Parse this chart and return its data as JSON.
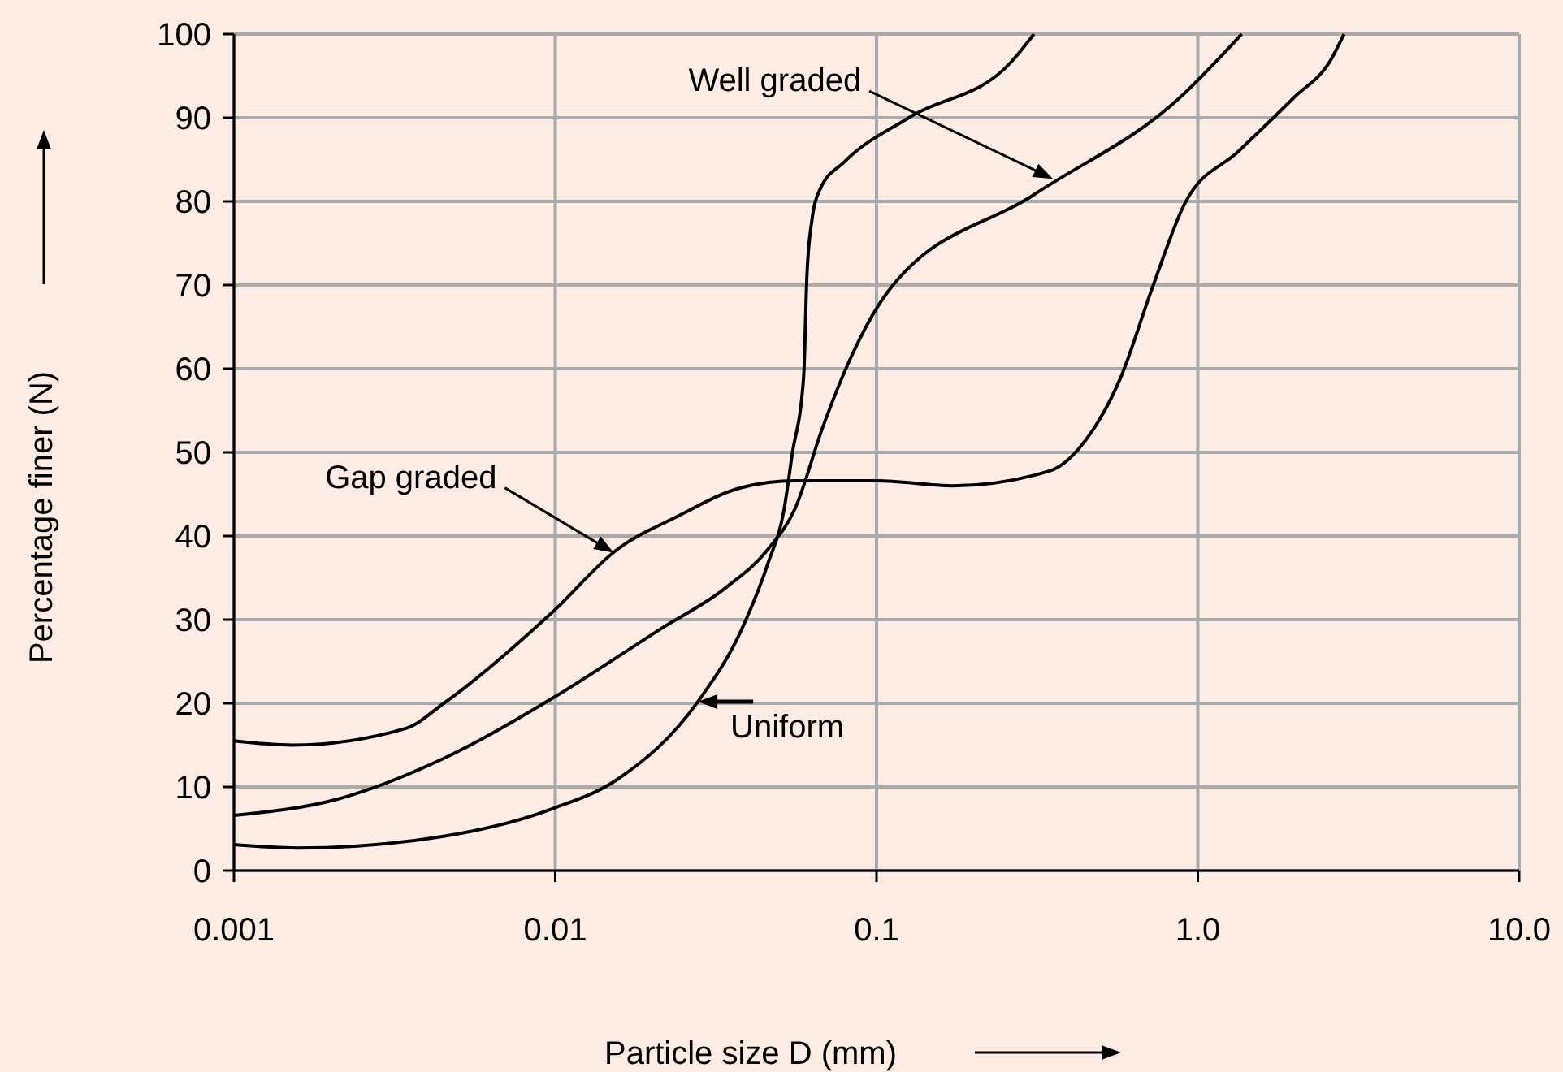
{
  "chart_data": {
    "type": "line",
    "xlabel": "Particle size D (mm)",
    "ylabel": "Percentage finer  (N)",
    "log": "x",
    "xlim": [
      0.001,
      10
    ],
    "xticks": [
      0.001,
      0.01,
      0.1,
      {
        "value": 1,
        "label": "1.0"
      },
      {
        "value": 10,
        "label": "10.0"
      }
    ],
    "ylim": [
      0,
      100
    ],
    "yticks": [
      0,
      10,
      20,
      30,
      40,
      50,
      60,
      70,
      80,
      90,
      100
    ],
    "grid": true,
    "marker": "none",
    "line_style": "solid",
    "series": [
      {
        "color": "#000000",
        "x": [
          0.001,
          0.00157,
          0.00449,
          0.0098,
          0.0156,
          0.0278,
          0.0381,
          0.0459,
          0.0516,
          0.0546,
          0.0593,
          0.0607,
          0.0628,
          0.0666,
          0.0793,
          0.126,
          0.263,
          0.309
        ],
        "values": [
          3.1,
          2.7,
          4.1,
          7.4,
          10.9,
          20.2,
          28.9,
          36.7,
          43.3,
          49.7,
          59,
          71,
          77.5,
          81.4,
          84.7,
          90,
          96.7,
          100
        ]
      },
      {
        "color": "#000000",
        "x": [
          0.001,
          0.00208,
          0.00449,
          0.0098,
          0.0213,
          0.0339,
          0.0459,
          0.0558,
          0.068,
          0.082,
          0.108,
          0.309,
          0.879,
          1.37
        ],
        "values": [
          6.6,
          8.5,
          13.4,
          20.6,
          28.9,
          33.8,
          38.4,
          43.3,
          53,
          60.8,
          69.1,
          80.8,
          92.4,
          100
        ]
      },
      {
        "color": "#000000",
        "x": [
          0.001,
          0.00152,
          0.00343,
          0.0045,
          0.0098,
          0.0156,
          0.0239,
          0.0381,
          0.0558,
          0.1,
          0.173,
          0.347,
          0.438,
          0.573,
          0.722,
          0.912,
          1.34,
          1.99,
          2.6,
          2.85
        ],
        "values": [
          15.5,
          15,
          17,
          20,
          30.9,
          38.4,
          42.3,
          45.8,
          46.6,
          46.6,
          46,
          47.8,
          51,
          58.8,
          69.7,
          79.8,
          86,
          92.4,
          97,
          100
        ]
      }
    ],
    "annotations": [
      {
        "text": "Well graded",
        "x": 0.354,
        "y": 82.7
      },
      {
        "text": "Gap graded",
        "x": 0.0152,
        "y": 38
      },
      {
        "text": "Uniform",
        "x": 0.0278,
        "y": 20.2
      }
    ]
  }
}
